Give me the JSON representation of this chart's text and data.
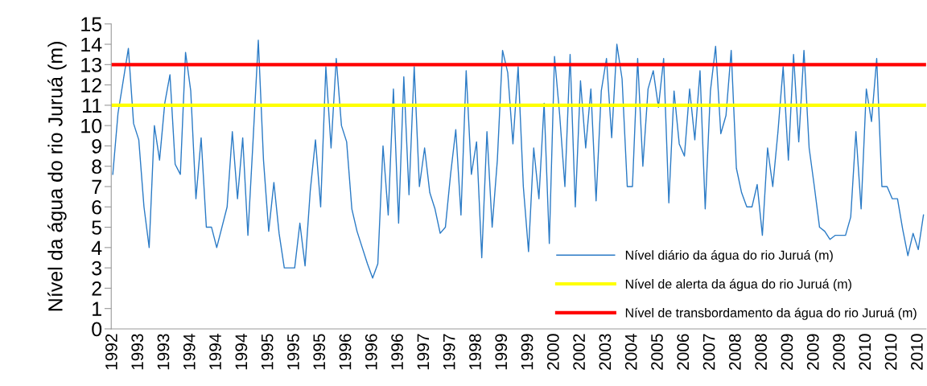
{
  "chart_data": {
    "type": "line",
    "ylabel": "Nível da água do rio Juruá (m)",
    "categories": [
      "1992",
      null,
      null,
      null,
      null,
      "1993",
      null,
      null,
      null,
      null,
      "1993",
      null,
      null,
      null,
      null,
      "1994",
      null,
      null,
      null,
      null,
      "1994",
      null,
      null,
      null,
      null,
      "1994",
      null,
      null,
      null,
      null,
      "1995",
      null,
      null,
      null,
      null,
      "1995",
      null,
      null,
      null,
      null,
      "1995",
      null,
      null,
      null,
      null,
      "1996",
      null,
      null,
      null,
      null,
      "1996",
      null,
      null,
      null,
      null,
      "1996",
      null,
      null,
      null,
      null,
      "1997",
      null,
      null,
      null,
      null,
      "1997",
      null,
      null,
      null,
      null,
      "1998",
      null,
      null,
      null,
      null,
      "1999",
      null,
      null,
      null,
      null,
      "1999",
      null,
      null,
      null,
      null,
      "2000",
      null,
      null,
      null,
      null,
      "2002",
      null,
      null,
      null,
      null,
      "2003",
      null,
      null,
      null,
      null,
      "2004",
      null,
      null,
      null,
      null,
      "2005",
      null,
      null,
      null,
      null,
      "2006",
      null,
      null,
      null,
      null,
      "2007",
      null,
      null,
      null,
      null,
      "2008",
      null,
      null,
      null,
      null,
      "2008",
      null,
      null,
      null,
      null,
      "2009",
      null,
      null,
      null,
      null,
      "2009",
      null,
      null,
      null,
      null,
      "2009",
      null,
      null,
      null,
      null,
      "2010",
      null,
      null,
      null,
      null,
      "2010",
      null,
      null,
      null,
      null,
      "2010",
      null
    ],
    "series": [
      {
        "name": "Nível diário da água do rio Juruá (m)",
        "color": "#2b7bc6",
        "values": [
          7.6,
          10.6,
          12.2,
          13.8,
          10.1,
          9.3,
          6.0,
          4.0,
          10.0,
          8.3,
          11.1,
          12.5,
          8.1,
          7.6,
          13.6,
          11.7,
          6.4,
          9.4,
          5.0,
          5.0,
          4.0,
          5.0,
          6.0,
          9.7,
          6.4,
          9.4,
          4.6,
          9.3,
          14.2,
          8.3,
          4.8,
          7.2,
          4.7,
          3.0,
          3.0,
          3.0,
          5.2,
          3.1,
          6.8,
          9.3,
          6.0,
          12.9,
          8.9,
          13.3,
          10.0,
          9.2,
          5.9,
          4.8,
          4.0,
          3.2,
          2.5,
          3.2,
          9.0,
          5.6,
          11.8,
          5.2,
          12.4,
          6.6,
          12.9,
          7.0,
          8.9,
          6.7,
          5.9,
          4.7,
          5.0,
          7.6,
          9.8,
          5.6,
          12.7,
          7.6,
          9.2,
          3.5,
          9.7,
          5.0,
          8.3,
          13.7,
          12.6,
          9.1,
          12.9,
          7.0,
          3.8,
          8.9,
          6.4,
          11.1,
          4.2,
          13.4,
          10.5,
          7.0,
          13.5,
          6.0,
          12.2,
          8.9,
          11.8,
          6.3,
          11.7,
          13.3,
          9.4,
          14.0,
          12.3,
          7.0,
          7.0,
          13.3,
          8.0,
          11.8,
          12.7,
          10.9,
          13.3,
          6.2,
          11.7,
          9.1,
          8.5,
          11.8,
          9.3,
          12.7,
          5.9,
          11.7,
          13.9,
          9.6,
          10.5,
          13.7,
          7.9,
          6.7,
          6.0,
          6.0,
          7.1,
          4.6,
          8.9,
          7.0,
          9.7,
          12.9,
          8.3,
          13.5,
          9.2,
          13.7,
          8.9,
          7.0,
          5.0,
          4.8,
          4.4,
          4.6,
          4.6,
          4.6,
          5.5,
          9.7,
          5.9,
          11.8,
          10.2,
          13.3,
          7.0,
          7.0,
          6.4,
          6.4,
          4.9,
          3.6,
          4.7,
          3.9,
          5.6
        ]
      }
    ],
    "ref_lines": [
      {
        "axis": "y",
        "value": 11,
        "label": "Nível de alerta da água do rio Juruá (m)",
        "color": "#ffff00"
      },
      {
        "axis": "y",
        "value": 13,
        "label": "Nível de transbordamento da água do rio Juruá (m)",
        "color": "#ff0000"
      }
    ],
    "ylim": [
      0,
      15
    ],
    "yticks": [
      0,
      1,
      2,
      3,
      4,
      5,
      6,
      7,
      8,
      9,
      10,
      11,
      12,
      13,
      14,
      15
    ],
    "grid": false,
    "legend": "bottom right",
    "marker": "none",
    "line_style": "solid"
  }
}
